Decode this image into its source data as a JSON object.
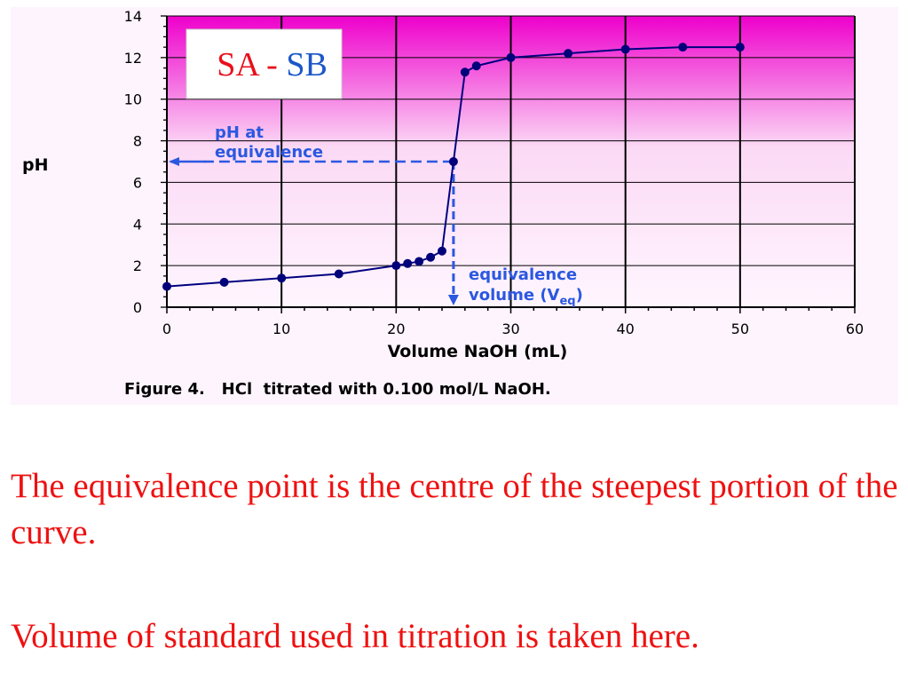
{
  "chart_data": {
    "type": "line",
    "title": "",
    "inset_label": {
      "left": "SA",
      "sep": " - ",
      "right": "SB"
    },
    "xlabel": "Volume NaOH (mL)",
    "ylabel": "pH",
    "xlim": [
      0,
      60
    ],
    "ylim": [
      0,
      14
    ],
    "x_ticks": [
      "0",
      "10",
      "20",
      "30",
      "40",
      "50",
      "60"
    ],
    "y_ticks": [
      "0",
      "2",
      "4",
      "6",
      "8",
      "10",
      "12",
      "14"
    ],
    "grid": true,
    "series": [
      {
        "x": [
          0,
          5,
          10,
          15,
          20,
          21,
          22,
          23,
          24,
          25,
          26,
          27,
          30,
          35,
          40,
          45,
          50
        ],
        "y": [
          1.0,
          1.2,
          1.4,
          1.6,
          2.0,
          2.1,
          2.2,
          2.4,
          2.7,
          7.0,
          11.3,
          11.6,
          12.0,
          12.2,
          12.4,
          12.5,
          12.5
        ]
      }
    ],
    "annotations": {
      "ph_eq_line1": "pH at",
      "ph_eq_line2": "equivalence",
      "veq_line1": "equivalence",
      "veq_line2": "volume (V",
      "veq_sub": "eq",
      "veq_close": ")",
      "equivalence_x": 25,
      "equivalence_y": 7
    },
    "figure_caption": "Figure 4.   HCl  titrated with 0.100 mol/L NaOH."
  },
  "text": {
    "line1": "The equivalence point is the centre of the steepest portion of the curve.",
    "line2": "Volume of standard used in titration is taken here."
  },
  "colors": {
    "bg_top": "#ee00cc",
    "bg_bottom": "#fff4ff",
    "line": "#000080",
    "marker": "#00007a",
    "annotation": "#2b58e0",
    "sa": "#e8101c",
    "sb": "#1b57c8",
    "body_text": "#ee1111"
  }
}
